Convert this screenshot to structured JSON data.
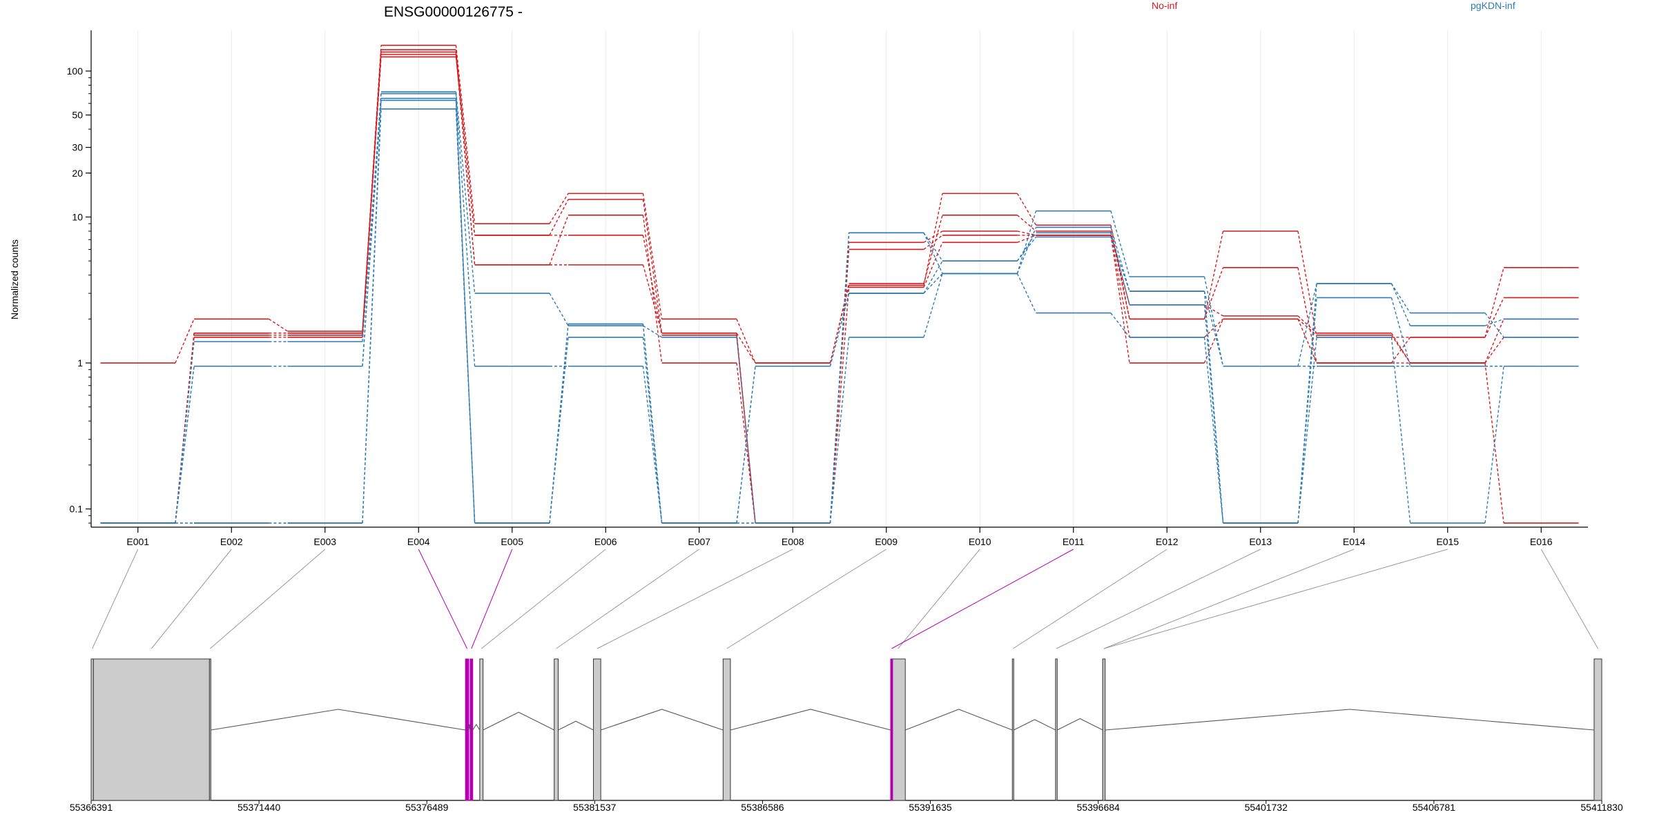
{
  "chart_data": {
    "type": "line",
    "title": "ENSG00000126775 -",
    "ylabel": "Normalized counts",
    "xlabel": "",
    "y_scale": "log",
    "ylim": [
      0.075,
      190
    ],
    "y_ticks": [
      {
        "value": 0.1,
        "label": "0.1"
      },
      {
        "value": 1,
        "label": "1"
      },
      {
        "value": 10,
        "label": "10"
      },
      {
        "value": 20,
        "label": "20"
      },
      {
        "value": 30,
        "label": "30"
      },
      {
        "value": 50,
        "label": "50"
      },
      {
        "value": 100,
        "label": "100"
      }
    ],
    "grid": "vertical",
    "legend_position": "top",
    "categories": [
      "E001",
      "E002",
      "E003",
      "E004",
      "E005",
      "E006",
      "E007",
      "E008",
      "E009",
      "E010",
      "E011",
      "E012",
      "E013",
      "E014",
      "E015",
      "E016"
    ],
    "groups": [
      {
        "name": "No-inf",
        "color": "#d7191c"
      },
      {
        "name": "pgKDN-inf",
        "color": "#2c7bb6"
      }
    ],
    "series": [
      {
        "group": "No-inf",
        "values": [
          1,
          2,
          1.65,
          150,
          9,
          14.5,
          2,
          1,
          3.4,
          14.5,
          8.8,
          2,
          8,
          1.5,
          1.5,
          2.8
        ]
      },
      {
        "group": "No-inf",
        "values": [
          0.08,
          1.5,
          1.5,
          125,
          7.5,
          13.2,
          1.6,
          1,
          3.5,
          10.3,
          8,
          2,
          4.5,
          1,
          1.5,
          4.5
        ]
      },
      {
        "group": "No-inf",
        "values": [
          0.08,
          1.6,
          1.6,
          140,
          4.7,
          10.3,
          1,
          0.08,
          6.7,
          8,
          7.5,
          1,
          2,
          1,
          1,
          0.08
        ]
      },
      {
        "group": "No-inf",
        "values": [
          0.08,
          1.55,
          1.55,
          135,
          7.5,
          7.5,
          1.55,
          0.08,
          6,
          7.5,
          7.5,
          1.5,
          2,
          1.55,
          1,
          1.5
        ]
      },
      {
        "group": "No-inf",
        "values": [
          0.08,
          1.6,
          1.6,
          130,
          4.7,
          4.7,
          1.6,
          0.08,
          3.3,
          6.7,
          7.5,
          2.5,
          2.1,
          1.6,
          1,
          2
        ]
      },
      {
        "group": "pgKDN-inf",
        "values": [
          0.08,
          0.95,
          0.95,
          72,
          3,
          1.8,
          1.5,
          0.08,
          7.8,
          4.1,
          11,
          3.9,
          0.95,
          3.5,
          1.8,
          2
        ]
      },
      {
        "group": "pgKDN-inf",
        "values": [
          0.08,
          1.4,
          1.4,
          70,
          0.95,
          0.95,
          0.08,
          0.95,
          3,
          4.1,
          8.5,
          3.1,
          0.95,
          0.95,
          0.95,
          0.95
        ]
      },
      {
        "group": "pgKDN-inf",
        "values": [
          0.08,
          0.95,
          0.95,
          63,
          0.08,
          1.85,
          0.08,
          0.95,
          3,
          5,
          7.3,
          3.1,
          0.08,
          2.8,
          0.95,
          0.95
        ]
      },
      {
        "group": "pgKDN-inf",
        "values": [
          0.08,
          0.08,
          0.08,
          55,
          0.08,
          1.85,
          0.08,
          0.08,
          1.5,
          4.1,
          2.2,
          1.5,
          0.08,
          1.5,
          0.08,
          0.95
        ]
      },
      {
        "group": "pgKDN-inf",
        "values": [
          0.08,
          0.08,
          0.08,
          65,
          0.08,
          1.5,
          0.08,
          0.08,
          7.8,
          5,
          7.8,
          2.5,
          0.08,
          3.5,
          2.2,
          1.5
        ]
      }
    ],
    "gene_model": {
      "coordinate_ticks": [
        55366391,
        55371440,
        55376489,
        55381537,
        55386586,
        55391635,
        55396684,
        55401732,
        55406781,
        55411830
      ],
      "coordinate_range": [
        55366391,
        55411830
      ],
      "significant_color": "#b300b3",
      "exon_fill": "#cccccc",
      "exons": [
        {
          "id": "E001",
          "start": 55366391,
          "end": 55366460,
          "significant": false
        },
        {
          "id": "E002",
          "start": 55366460,
          "end": 55369950,
          "significant": false
        },
        {
          "id": "E003",
          "start": 55369950,
          "end": 55369950,
          "significant": false
        },
        {
          "id": "E004",
          "start": 55377650,
          "end": 55377750,
          "significant": true
        },
        {
          "id": "E005",
          "start": 55377790,
          "end": 55377870,
          "significant": true
        },
        {
          "id": "E006",
          "start": 55378080,
          "end": 55378180,
          "significant": false
        },
        {
          "id": "E007",
          "start": 55380320,
          "end": 55380440,
          "significant": false
        },
        {
          "id": "E008",
          "start": 55381500,
          "end": 55381720,
          "significant": false
        },
        {
          "id": "E009",
          "start": 55385400,
          "end": 55385620,
          "significant": false
        },
        {
          "id": "E010",
          "start": 55390440,
          "end": 55390880,
          "significant": false
        },
        {
          "id": "E011",
          "start": 55390440,
          "end": 55390500,
          "significant": true
        },
        {
          "id": "E012",
          "start": 55394100,
          "end": 55394140,
          "significant": false
        },
        {
          "id": "E013",
          "start": 55395400,
          "end": 55395450,
          "significant": false
        },
        {
          "id": "E014",
          "start": 55396820,
          "end": 55396890,
          "significant": false
        },
        {
          "id": "E015",
          "start": 55396820,
          "end": 55396890,
          "significant": false
        },
        {
          "id": "E016",
          "start": 55411600,
          "end": 55411830,
          "significant": false
        }
      ]
    }
  }
}
